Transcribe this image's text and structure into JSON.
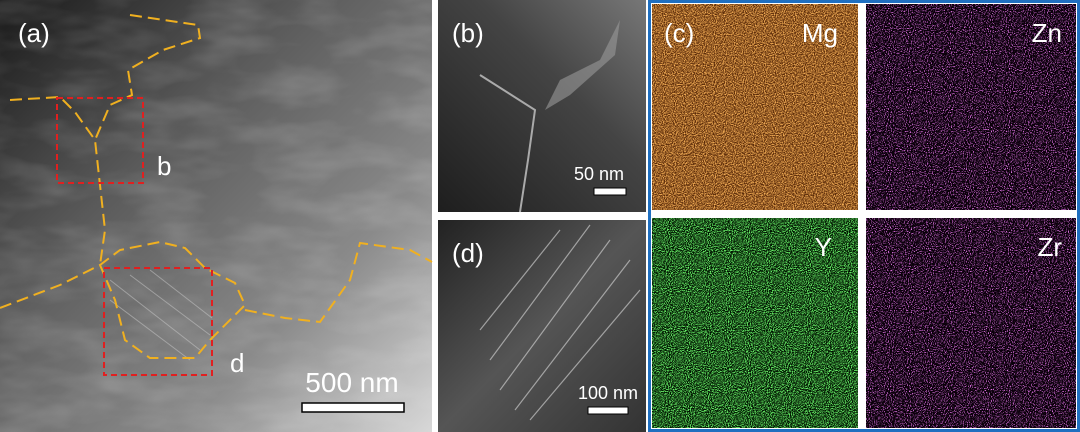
{
  "panels": {
    "a": {
      "label": "(a)",
      "markers": [
        "b",
        "d"
      ],
      "scale_bar": "500 nm"
    },
    "b": {
      "label": "(b)",
      "scale_bar": "50 nm"
    },
    "d": {
      "label": "(d)",
      "scale_bar": "100 nm"
    },
    "c": {
      "label": "(c)",
      "maps": [
        "Mg",
        "Zn",
        "Y",
        "Zr"
      ]
    }
  }
}
